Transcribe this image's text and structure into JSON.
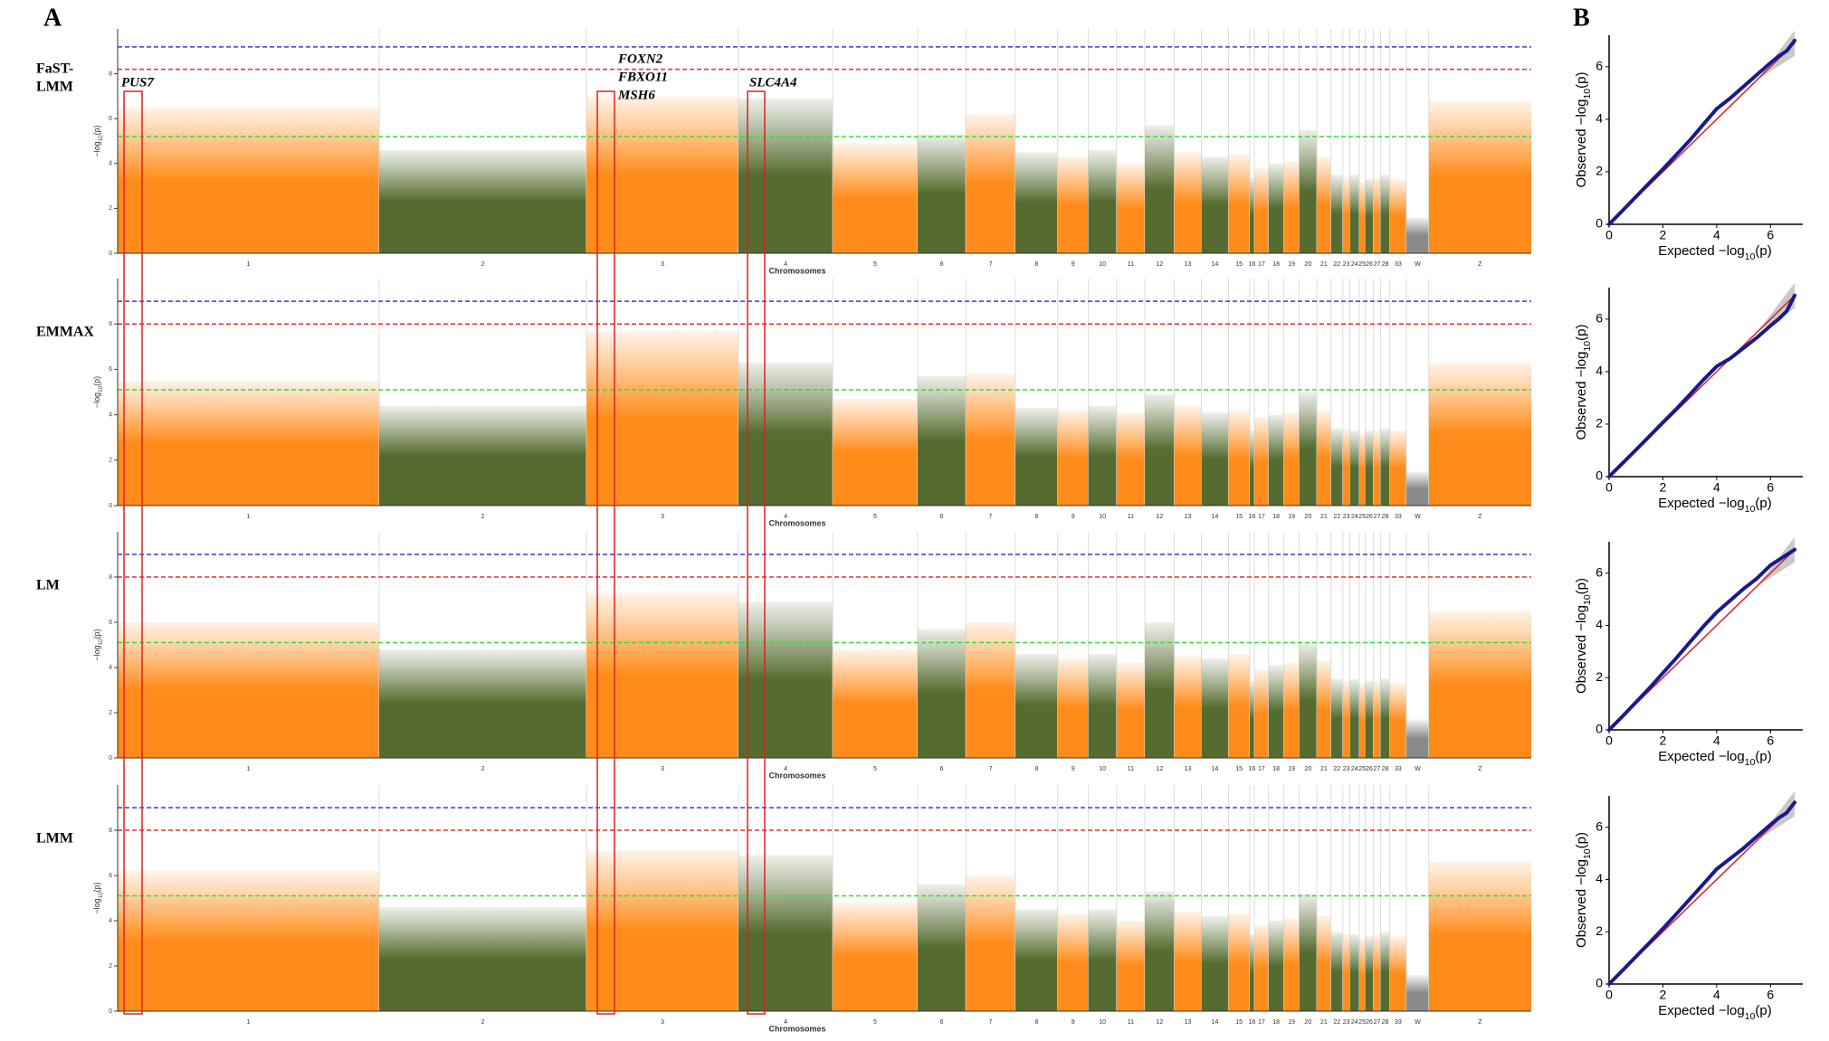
{
  "panel_labels": [
    "A",
    "B"
  ],
  "annotations": [
    "PUS7",
    "FOXN2",
    "FBXO11",
    "MSH6",
    "SLC4A4"
  ],
  "chart_data": [
    {
      "type": "manhattan",
      "title_lines": [
        "FaST-",
        "LMM"
      ],
      "x_label": "Chromosomes",
      "y_label": [
        "−log",
        "10",
        "(p)"
      ],
      "categories": [
        "1",
        "2",
        "3",
        "4",
        "5",
        "6",
        "7",
        "8",
        "9",
        "10",
        "11",
        "12",
        "13",
        "14",
        "15",
        "16",
        "17",
        "18",
        "19",
        "20",
        "21",
        "22",
        "23",
        "24",
        "25",
        "26",
        "27",
        "28",
        "33",
        "W",
        "Z"
      ],
      "lengths": [
        222,
        176,
        129,
        80,
        72,
        41,
        42,
        36,
        26,
        24,
        24,
        25,
        23,
        23,
        18,
        4,
        12,
        13,
        13,
        15,
        12,
        10,
        6,
        8,
        5,
        7,
        6,
        8,
        14,
        19,
        87
      ],
      "colors": [
        "#ff8c1a",
        "#556b2f",
        "#8a8a8a"
      ],
      "values": [
        6.5,
        4.6,
        7.0,
        6.9,
        4.9,
        5.3,
        6.2,
        4.5,
        4.3,
        4.6,
        4.0,
        5.7,
        4.5,
        4.3,
        4.4,
        3.4,
        3.8,
        4.0,
        4.1,
        5.5,
        4.3,
        3.5,
        3.4,
        3.5,
        3.2,
        3.3,
        3.4,
        3.5,
        3.3,
        1.6,
        6.8
      ],
      "thresholds": [
        {
          "value": 9.2,
          "color": "#3b3bd6"
        },
        {
          "value": 8.2,
          "color": "#e03030"
        },
        {
          "value": 5.2,
          "color": "#33dd33"
        }
      ],
      "ylim": [
        0,
        10
      ],
      "yticks": [
        0,
        2,
        4,
        6,
        8
      ]
    },
    {
      "type": "manhattan",
      "title_lines": [
        "EMMAX"
      ],
      "x_label": "Chromosomes",
      "y_label": [
        "−log",
        "10",
        "(p)"
      ],
      "categories": [
        "1",
        "2",
        "3",
        "4",
        "5",
        "6",
        "7",
        "8",
        "9",
        "10",
        "11",
        "12",
        "13",
        "14",
        "15",
        "16",
        "17",
        "18",
        "19",
        "20",
        "21",
        "22",
        "23",
        "24",
        "25",
        "26",
        "27",
        "28",
        "33",
        "W",
        "Z"
      ],
      "lengths": [
        222,
        176,
        129,
        80,
        72,
        41,
        42,
        36,
        26,
        24,
        24,
        25,
        23,
        23,
        18,
        4,
        12,
        13,
        13,
        15,
        12,
        10,
        6,
        8,
        5,
        7,
        6,
        8,
        14,
        19,
        87
      ],
      "colors": [
        "#ff8c1a",
        "#556b2f",
        "#8a8a8a"
      ],
      "values": [
        5.5,
        4.4,
        7.7,
        6.3,
        4.7,
        5.7,
        5.8,
        4.3,
        4.2,
        4.4,
        4.1,
        4.9,
        4.4,
        4.1,
        4.2,
        3.3,
        3.9,
        4.0,
        4.1,
        5.0,
        4.2,
        3.4,
        3.4,
        3.3,
        3.2,
        3.3,
        3.3,
        3.4,
        3.3,
        1.5,
        6.3
      ],
      "thresholds": [
        {
          "value": 9.0,
          "color": "#3b3bd6"
        },
        {
          "value": 8.0,
          "color": "#e03030"
        },
        {
          "value": 5.1,
          "color": "#33dd33"
        }
      ],
      "ylim": [
        0,
        10
      ],
      "yticks": [
        0,
        2,
        4,
        6,
        8
      ]
    },
    {
      "type": "manhattan",
      "title_lines": [
        "LM"
      ],
      "x_label": "Chromosomes",
      "y_label": [
        "−log",
        "10",
        "(p)"
      ],
      "categories": [
        "1",
        "2",
        "3",
        "4",
        "5",
        "6",
        "7",
        "8",
        "9",
        "10",
        "11",
        "12",
        "13",
        "14",
        "15",
        "16",
        "17",
        "18",
        "19",
        "20",
        "21",
        "22",
        "23",
        "24",
        "25",
        "26",
        "27",
        "28",
        "33",
        "W",
        "Z"
      ],
      "lengths": [
        222,
        176,
        129,
        80,
        72,
        41,
        42,
        36,
        26,
        24,
        24,
        25,
        23,
        23,
        18,
        4,
        12,
        13,
        13,
        15,
        12,
        10,
        6,
        8,
        5,
        7,
        6,
        8,
        14,
        19,
        87
      ],
      "colors": [
        "#ff8c1a",
        "#556b2f",
        "#8a8a8a"
      ],
      "values": [
        6.0,
        4.8,
        7.3,
        6.9,
        4.8,
        5.7,
        6.0,
        4.6,
        4.4,
        4.6,
        4.2,
        6.0,
        4.5,
        4.4,
        4.6,
        3.4,
        3.9,
        4.1,
        4.2,
        5.1,
        4.3,
        3.5,
        3.4,
        3.5,
        3.3,
        3.4,
        3.4,
        3.5,
        3.3,
        1.7,
        6.5
      ],
      "thresholds": [
        {
          "value": 9.0,
          "color": "#3b3bd6"
        },
        {
          "value": 8.0,
          "color": "#e03030"
        },
        {
          "value": 5.1,
          "color": "#33dd33"
        }
      ],
      "ylim": [
        0,
        10
      ],
      "yticks": [
        0,
        2,
        4,
        6,
        8
      ]
    },
    {
      "type": "manhattan",
      "title_lines": [
        "LMM"
      ],
      "x_label": "Chromosomes",
      "y_label": [
        "−log",
        "10",
        "(p)"
      ],
      "categories": [
        "1",
        "2",
        "3",
        "4",
        "5",
        "6",
        "7",
        "8",
        "9",
        "10",
        "11",
        "12",
        "13",
        "14",
        "15",
        "16",
        "17",
        "18",
        "19",
        "20",
        "21",
        "22",
        "23",
        "24",
        "25",
        "26",
        "27",
        "28",
        "33",
        "W",
        "Z"
      ],
      "lengths": [
        222,
        176,
        129,
        80,
        72,
        41,
        42,
        36,
        26,
        24,
        24,
        25,
        23,
        23,
        18,
        4,
        12,
        13,
        13,
        15,
        12,
        10,
        6,
        8,
        5,
        7,
        6,
        8,
        14,
        19,
        87
      ],
      "colors": [
        "#ff8c1a",
        "#556b2f",
        "#8a8a8a"
      ],
      "values": [
        6.2,
        4.6,
        7.1,
        6.9,
        4.8,
        5.6,
        6.0,
        4.5,
        4.3,
        4.5,
        4.0,
        5.3,
        4.4,
        4.2,
        4.3,
        3.4,
        3.8,
        4.0,
        4.1,
        5.2,
        4.2,
        3.5,
        3.4,
        3.4,
        3.2,
        3.3,
        3.4,
        3.5,
        3.3,
        1.6,
        6.6
      ],
      "thresholds": [
        {
          "value": 9.0,
          "color": "#3b3bd6"
        },
        {
          "value": 8.0,
          "color": "#e03030"
        },
        {
          "value": 5.1,
          "color": "#33dd33"
        }
      ],
      "ylim": [
        0,
        10
      ],
      "yticks": [
        0,
        2,
        4,
        6,
        8
      ]
    },
    {
      "type": "qq",
      "x_label": [
        "Expected −log",
        "10",
        "(p)"
      ],
      "y_label": [
        "Observed −log",
        "10",
        "(p)"
      ],
      "color": "#1a1a8c",
      "reference_color": "#e02020",
      "x": [
        0,
        0.5,
        1,
        1.5,
        2,
        2.5,
        3,
        3.5,
        4,
        4.5,
        5,
        5.5,
        6,
        6.3,
        6.6,
        6.9
      ],
      "values": [
        0,
        0.52,
        1.05,
        1.58,
        2.1,
        2.65,
        3.2,
        3.8,
        4.4,
        4.8,
        5.25,
        5.7,
        6.15,
        6.4,
        6.6,
        7.0
      ],
      "xlim": [
        0,
        7.2
      ],
      "ylim": [
        0,
        7.2
      ],
      "xticks": [
        0,
        2,
        4,
        6
      ],
      "yticks": [
        0,
        2,
        4,
        6
      ]
    },
    {
      "type": "qq",
      "x_label": [
        "Expected −log",
        "10",
        "(p)"
      ],
      "y_label": [
        "Observed −log",
        "10",
        "(p)"
      ],
      "color": "#1a1a8c",
      "reference_color": "#e02020",
      "x": [
        0,
        0.5,
        1,
        1.5,
        2,
        2.5,
        3,
        3.5,
        4,
        4.5,
        5,
        5.5,
        6,
        6.3,
        6.6,
        6.9
      ],
      "values": [
        0,
        0.51,
        1.02,
        1.54,
        2.06,
        2.58,
        3.12,
        3.68,
        4.2,
        4.5,
        4.9,
        5.3,
        5.75,
        6.0,
        6.3,
        6.9
      ],
      "xlim": [
        0,
        7.2
      ],
      "ylim": [
        0,
        7.2
      ],
      "xticks": [
        0,
        2,
        4,
        6
      ],
      "yticks": [
        0,
        2,
        4,
        6
      ]
    },
    {
      "type": "qq",
      "x_label": [
        "Expected −log",
        "10",
        "(p)"
      ],
      "y_label": [
        "Observed −log",
        "10",
        "(p)"
      ],
      "color": "#1a1a8c",
      "reference_color": "#e02020",
      "x": [
        0,
        0.5,
        1,
        1.5,
        2,
        2.5,
        3,
        3.5,
        4,
        4.5,
        5,
        5.5,
        6,
        6.3,
        6.6,
        6.9
      ],
      "values": [
        0,
        0.52,
        1.06,
        1.6,
        2.18,
        2.75,
        3.35,
        3.95,
        4.5,
        4.95,
        5.4,
        5.8,
        6.3,
        6.5,
        6.7,
        6.9
      ],
      "xlim": [
        0,
        7.2
      ],
      "ylim": [
        0,
        7.2
      ],
      "xticks": [
        0,
        2,
        4,
        6
      ],
      "yticks": [
        0,
        2,
        4,
        6
      ]
    },
    {
      "type": "qq",
      "x_label": [
        "Expected −log",
        "10",
        "(p)"
      ],
      "y_label": [
        "Observed −log",
        "10",
        "(p)"
      ],
      "color": "#1a1a8c",
      "reference_color": "#e02020",
      "x": [
        0,
        0.5,
        1,
        1.5,
        2,
        2.5,
        3,
        3.5,
        4,
        4.5,
        5,
        5.5,
        6,
        6.3,
        6.6,
        6.9
      ],
      "values": [
        0,
        0.52,
        1.05,
        1.58,
        2.12,
        2.68,
        3.25,
        3.82,
        4.4,
        4.8,
        5.2,
        5.65,
        6.1,
        6.35,
        6.55,
        6.95
      ],
      "xlim": [
        0,
        7.2
      ],
      "ylim": [
        0,
        7.2
      ],
      "xticks": [
        0,
        2,
        4,
        6
      ],
      "yticks": [
        0,
        2,
        4,
        6
      ]
    }
  ]
}
